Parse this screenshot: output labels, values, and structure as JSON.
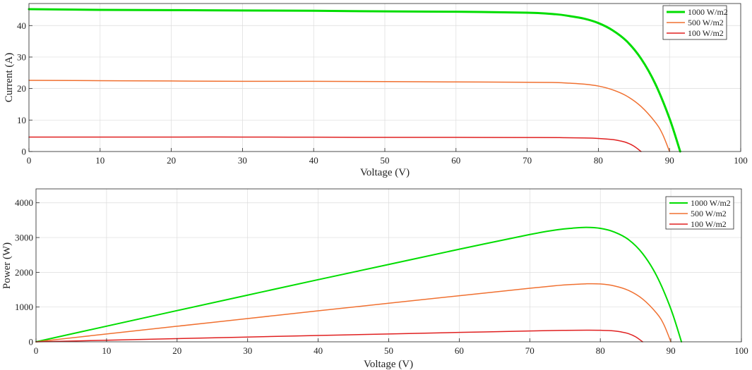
{
  "chart_data": [
    {
      "type": "line",
      "xlabel": "Voltage (V)",
      "ylabel": "Current (A)",
      "xlim": [
        0,
        100
      ],
      "ylim": [
        0,
        47
      ],
      "xticks": [
        "0",
        "10",
        "20",
        "30",
        "40",
        "50",
        "60",
        "70",
        "80",
        "90",
        "100"
      ],
      "yticks": [
        "0",
        "10",
        "20",
        "30",
        "40"
      ],
      "grid": true,
      "legend_position": "top-right",
      "series": [
        {
          "name": "1000 W/m2",
          "color": "#00dd00",
          "x": [
            0,
            10,
            20,
            30,
            40,
            50,
            60,
            70,
            74,
            76,
            78,
            80,
            82,
            84,
            86,
            88,
            90,
            91.5
          ],
          "y": [
            45.2,
            45.0,
            44.9,
            44.8,
            44.7,
            44.5,
            44.4,
            44.1,
            43.6,
            43.0,
            42.2,
            40.8,
            38.5,
            35.0,
            29.5,
            21.5,
            10.5,
            0
          ]
        },
        {
          "name": "500 W/m2",
          "color": "#f07030",
          "x": [
            0,
            10,
            20,
            30,
            40,
            50,
            60,
            70,
            74,
            76,
            78,
            80,
            82,
            84,
            86,
            88,
            89,
            90
          ],
          "y": [
            22.6,
            22.5,
            22.4,
            22.3,
            22.3,
            22.2,
            22.1,
            22.0,
            21.9,
            21.7,
            21.4,
            20.8,
            19.6,
            17.6,
            14.3,
            9.3,
            5.6,
            0
          ]
        },
        {
          "name": "100 W/m2",
          "color": "#e02020",
          "x": [
            0,
            10,
            20,
            30,
            40,
            50,
            60,
            70,
            75,
            78,
            80,
            82,
            83,
            84,
            85,
            86
          ],
          "y": [
            4.6,
            4.6,
            4.6,
            4.6,
            4.55,
            4.5,
            4.5,
            4.45,
            4.4,
            4.3,
            4.15,
            3.8,
            3.4,
            2.8,
            1.7,
            0
          ]
        }
      ]
    },
    {
      "type": "line",
      "xlabel": "Voltage (V)",
      "ylabel": "Power (W)",
      "xlim": [
        0,
        100
      ],
      "ylim": [
        0,
        4400
      ],
      "xticks": [
        "0",
        "10",
        "20",
        "30",
        "40",
        "50",
        "60",
        "70",
        "80",
        "90",
        "100"
      ],
      "yticks": [
        "0",
        "1000",
        "2000",
        "3000",
        "4000"
      ],
      "grid": true,
      "legend_position": "top-right",
      "series": [
        {
          "name": "1000 W/m2",
          "color": "#00dd00",
          "x": [
            0,
            10,
            20,
            30,
            40,
            50,
            60,
            70,
            74,
            76,
            78,
            80,
            82,
            84,
            86,
            88,
            90,
            91.5
          ],
          "y": [
            0,
            450,
            898,
            1344,
            1788,
            2225,
            2664,
            3087,
            3226,
            3268,
            3292,
            3264,
            3157,
            2940,
            2537,
            1892,
            945,
            0
          ]
        },
        {
          "name": "500 W/m2",
          "color": "#f07030",
          "x": [
            0,
            10,
            20,
            30,
            40,
            50,
            60,
            70,
            74,
            76,
            78,
            80,
            82,
            84,
            86,
            88,
            89,
            90
          ],
          "y": [
            0,
            225,
            448,
            669,
            892,
            1110,
            1326,
            1540,
            1621,
            1649,
            1669,
            1664,
            1607,
            1478,
            1230,
            818,
            498,
            0
          ]
        },
        {
          "name": "100 W/m2",
          "color": "#e02020",
          "x": [
            0,
            10,
            20,
            30,
            40,
            50,
            60,
            70,
            75,
            78,
            80,
            82,
            83,
            84,
            85,
            86
          ],
          "y": [
            0,
            46,
            92,
            138,
            182,
            225,
            270,
            312,
            330,
            335,
            332,
            312,
            282,
            235,
            145,
            0
          ]
        }
      ]
    }
  ]
}
